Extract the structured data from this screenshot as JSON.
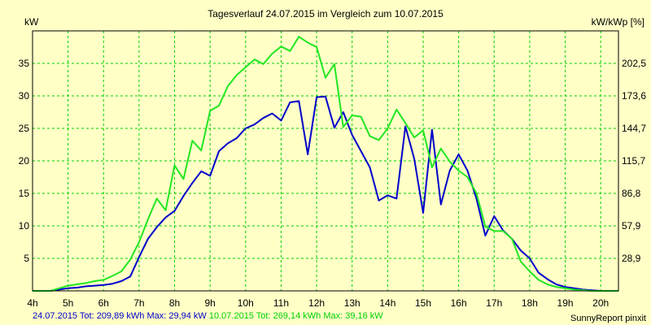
{
  "title": "Tagesverlauf 24.07.2015 im Vergleich zum 10.07.2015",
  "left_unit": "kW",
  "right_unit": "kW/kWp [%]",
  "footer": {
    "series1_text": "24.07.2015 Tot: 209,89 kWh Max: 29,94 kW",
    "series2_text": "10.07.2015 Tot: 269,14 kWh Max: 39,16 kW"
  },
  "credit": "SunnyReport pinxit",
  "colors": {
    "background": "#ffffc6",
    "grid": "#00d000",
    "series1": "#0000cc",
    "series2": "#22e622"
  },
  "chart_data": {
    "type": "line",
    "title": "Tagesverlauf 24.07.2015 im Vergleich zum 10.07.2015",
    "xlabel": "",
    "ylabel": "kW",
    "y2label": "kW/kWp [%]",
    "xlim": [
      4,
      20.5
    ],
    "ylim": [
      0,
      40
    ],
    "grid": true,
    "x_ticks": [
      4,
      5,
      6,
      7,
      8,
      9,
      10,
      11,
      12,
      13,
      14,
      15,
      16,
      17,
      18,
      19,
      20
    ],
    "x_tick_labels": [
      "4h",
      "5h",
      "6h",
      "7h",
      "8h",
      "9h",
      "10h",
      "11h",
      "12h",
      "13h",
      "14h",
      "15h",
      "16h",
      "17h",
      "18h",
      "19h",
      "20h"
    ],
    "y_ticks": [
      5,
      10,
      15,
      20,
      25,
      30,
      35
    ],
    "y_tick_labels": [
      "5",
      "10",
      "15",
      "20",
      "25",
      "30",
      "35"
    ],
    "y2_tick_labels": [
      "28,9",
      "57,9",
      "86,8",
      "115,7",
      "144,7",
      "173,6",
      "202,5"
    ],
    "series": [
      {
        "name": "24.07.2015",
        "color": "#0000cc",
        "points": [
          [
            4.0,
            0
          ],
          [
            4.5,
            0
          ],
          [
            4.75,
            0.2
          ],
          [
            5.0,
            0.4
          ],
          [
            5.25,
            0.5
          ],
          [
            5.5,
            0.7
          ],
          [
            5.75,
            0.8
          ],
          [
            6.0,
            0.9
          ],
          [
            6.25,
            1.1
          ],
          [
            6.5,
            1.5
          ],
          [
            6.75,
            2.2
          ],
          [
            7.0,
            5.2
          ],
          [
            7.25,
            8.0
          ],
          [
            7.5,
            9.8
          ],
          [
            7.75,
            11.3
          ],
          [
            8.0,
            12.3
          ],
          [
            8.25,
            14.6
          ],
          [
            8.5,
            16.6
          ],
          [
            8.75,
            18.4
          ],
          [
            9.0,
            17.7
          ],
          [
            9.25,
            21.5
          ],
          [
            9.5,
            22.7
          ],
          [
            9.75,
            23.5
          ],
          [
            10.0,
            25.0
          ],
          [
            10.25,
            25.6
          ],
          [
            10.5,
            26.6
          ],
          [
            10.75,
            27.3
          ],
          [
            11.0,
            26.2
          ],
          [
            11.25,
            29.0
          ],
          [
            11.5,
            29.2
          ],
          [
            11.75,
            21.0
          ],
          [
            12.0,
            29.8
          ],
          [
            12.25,
            29.9
          ],
          [
            12.5,
            25.1
          ],
          [
            12.75,
            27.5
          ],
          [
            13.0,
            24.0
          ],
          [
            13.25,
            21.5
          ],
          [
            13.5,
            19.0
          ],
          [
            13.75,
            13.9
          ],
          [
            14.0,
            14.7
          ],
          [
            14.25,
            14.2
          ],
          [
            14.5,
            25.3
          ],
          [
            14.75,
            20.3
          ],
          [
            15.0,
            12.0
          ],
          [
            15.25,
            24.8
          ],
          [
            15.5,
            13.3
          ],
          [
            15.75,
            18.5
          ],
          [
            16.0,
            21.0
          ],
          [
            16.25,
            18.5
          ],
          [
            16.5,
            14.2
          ],
          [
            16.75,
            8.5
          ],
          [
            17.0,
            11.5
          ],
          [
            17.25,
            9.3
          ],
          [
            17.5,
            8.0
          ],
          [
            17.75,
            6.2
          ],
          [
            18.0,
            5.0
          ],
          [
            18.25,
            2.8
          ],
          [
            18.5,
            1.8
          ],
          [
            18.75,
            1.0
          ],
          [
            19.0,
            0.6
          ],
          [
            19.25,
            0.4
          ],
          [
            19.5,
            0.2
          ],
          [
            19.75,
            0.1
          ],
          [
            20.0,
            0
          ],
          [
            20.5,
            0
          ]
        ]
      },
      {
        "name": "10.07.2015",
        "color": "#22e622",
        "points": [
          [
            4.0,
            0
          ],
          [
            4.5,
            0
          ],
          [
            4.75,
            0.4
          ],
          [
            5.0,
            0.8
          ],
          [
            5.25,
            1.0
          ],
          [
            5.5,
            1.2
          ],
          [
            5.75,
            1.5
          ],
          [
            6.0,
            1.7
          ],
          [
            6.25,
            2.3
          ],
          [
            6.5,
            3.0
          ],
          [
            6.75,
            4.8
          ],
          [
            7.0,
            7.5
          ],
          [
            7.25,
            11.0
          ],
          [
            7.5,
            14.2
          ],
          [
            7.75,
            12.4
          ],
          [
            8.0,
            19.3
          ],
          [
            8.25,
            17.2
          ],
          [
            8.5,
            23.1
          ],
          [
            8.75,
            21.6
          ],
          [
            9.0,
            27.7
          ],
          [
            9.25,
            28.5
          ],
          [
            9.5,
            31.5
          ],
          [
            9.75,
            33.2
          ],
          [
            10.0,
            34.4
          ],
          [
            10.25,
            35.6
          ],
          [
            10.5,
            34.9
          ],
          [
            10.75,
            36.5
          ],
          [
            11.0,
            37.6
          ],
          [
            11.25,
            36.9
          ],
          [
            11.5,
            39.1
          ],
          [
            11.75,
            38.2
          ],
          [
            12.0,
            37.5
          ],
          [
            12.25,
            32.8
          ],
          [
            12.5,
            34.9
          ],
          [
            12.75,
            25.2
          ],
          [
            13.0,
            27.0
          ],
          [
            13.25,
            26.8
          ],
          [
            13.5,
            23.8
          ],
          [
            13.75,
            23.2
          ],
          [
            14.0,
            25.0
          ],
          [
            14.25,
            27.9
          ],
          [
            14.5,
            25.8
          ],
          [
            14.75,
            23.6
          ],
          [
            15.0,
            24.7
          ],
          [
            15.25,
            19.0
          ],
          [
            15.5,
            21.9
          ],
          [
            15.75,
            19.9
          ],
          [
            16.0,
            18.5
          ],
          [
            16.25,
            17.5
          ],
          [
            16.5,
            15.0
          ],
          [
            16.75,
            9.9
          ],
          [
            17.0,
            9.2
          ],
          [
            17.25,
            9.2
          ],
          [
            17.5,
            8.0
          ],
          [
            17.75,
            4.5
          ],
          [
            18.0,
            3.0
          ],
          [
            18.25,
            1.7
          ],
          [
            18.5,
            1.0
          ],
          [
            18.75,
            0.6
          ],
          [
            19.0,
            0.4
          ],
          [
            19.25,
            0.2
          ],
          [
            19.5,
            0.1
          ],
          [
            19.75,
            0
          ],
          [
            20.0,
            0
          ],
          [
            20.5,
            0
          ]
        ]
      }
    ]
  }
}
